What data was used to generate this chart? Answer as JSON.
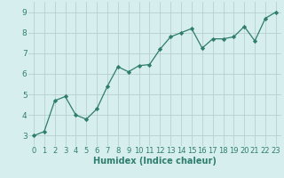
{
  "x": [
    0,
    1,
    2,
    3,
    4,
    5,
    6,
    7,
    8,
    9,
    10,
    11,
    12,
    13,
    14,
    15,
    16,
    17,
    18,
    19,
    20,
    21,
    22,
    23
  ],
  "y": [
    3.0,
    3.2,
    4.7,
    4.9,
    4.0,
    3.8,
    4.3,
    5.4,
    6.35,
    6.1,
    6.4,
    6.45,
    7.2,
    7.8,
    8.0,
    8.2,
    7.25,
    7.7,
    7.7,
    7.8,
    8.3,
    7.6,
    8.7,
    9.0
  ],
  "line_color": "#2e7d6e",
  "marker": "D",
  "marker_size": 2.2,
  "bg_color": "#d7eeee",
  "grid_color": "#b8d0d0",
  "xlabel": "Humidex (Indice chaleur)",
  "xlim": [
    -0.5,
    23.5
  ],
  "ylim": [
    2.5,
    9.5
  ],
  "yticks": [
    3,
    4,
    5,
    6,
    7,
    8,
    9
  ],
  "xticks": [
    0,
    1,
    2,
    3,
    4,
    5,
    6,
    7,
    8,
    9,
    10,
    11,
    12,
    13,
    14,
    15,
    16,
    17,
    18,
    19,
    20,
    21,
    22,
    23
  ],
  "tick_fontsize": 6.0,
  "xlabel_fontsize": 7.0
}
